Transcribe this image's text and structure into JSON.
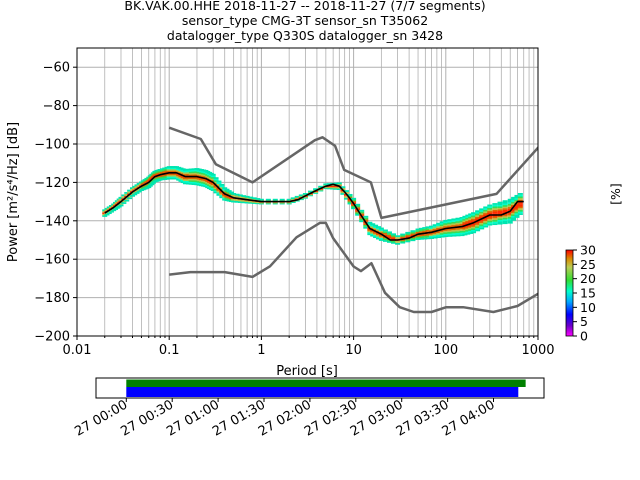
{
  "title": {
    "line1": "BK.VAK.00.HHE   2018-11-27 -- 2018-11-27  (7/7 segments)",
    "line2": "sensor_type CMG-3T sensor_sn T35062",
    "line3": "datalogger_type Q330S datalogger_sn 3428"
  },
  "chart_data": [
    {
      "type": "heatmap",
      "xlabel": "Period [s]",
      "ylabel": "Power [m²/s⁴/Hz] [dB]",
      "xscale": "log",
      "xlim": [
        0.01,
        1000
      ],
      "ylim": [
        -200,
        -50
      ],
      "xtick_labels": [
        "0.01",
        "0.1",
        "1",
        "10",
        "100",
        "1000"
      ],
      "xticks": [
        0.01,
        0.1,
        1,
        10,
        100,
        1000
      ],
      "yticks": [
        -60,
        -80,
        -100,
        -120,
        -140,
        -160,
        -180,
        -200
      ],
      "grid": true,
      "colorbar": {
        "label": "[%]",
        "min": 0,
        "max": 30,
        "ticks": [
          0,
          5,
          10,
          15,
          20,
          25,
          30
        ]
      },
      "series": [
        {
          "role": "high_noise_model",
          "color": "#666666",
          "x": [
            0.1,
            0.22,
            0.32,
            0.8,
            3.8,
            4.6,
            6.3,
            7.9,
            15.4,
            20,
            354.8,
            10000
          ],
          "y": [
            -91.5,
            -97.4,
            -110.5,
            -120,
            -98,
            -96.5,
            -101,
            -113.5,
            -120,
            -138.5,
            -126,
            -48.5
          ]
        },
        {
          "role": "low_noise_model",
          "color": "#666666",
          "x": [
            0.1,
            0.17,
            0.4,
            0.8,
            1.24,
            2.4,
            4.3,
            5,
            6,
            10,
            12,
            15.6,
            21.9,
            31.6,
            45,
            70,
            101,
            154,
            328,
            600,
            1000
          ],
          "y": [
            -168,
            -166.7,
            -166.7,
            -169.2,
            -163.7,
            -148.6,
            -141.1,
            -141.1,
            -149,
            -163.8,
            -166.2,
            -162.1,
            -177.5,
            -185,
            -187.5,
            -187.5,
            -185,
            -185,
            -187.5,
            -184.4,
            -178
          ]
        },
        {
          "role": "mode_ppsd",
          "color": "#000000",
          "x": [
            0.02,
            0.025,
            0.03,
            0.04,
            0.05,
            0.06,
            0.07,
            0.08,
            0.1,
            0.12,
            0.15,
            0.2,
            0.25,
            0.3,
            0.4,
            0.5,
            0.7,
            1,
            1.5,
            2,
            2.5,
            3,
            4,
            5,
            6,
            7,
            8,
            9,
            10,
            12,
            15,
            20,
            25,
            30,
            40,
            50,
            70,
            100,
            150,
            200,
            300,
            400,
            500,
            600,
            700
          ],
          "y": [
            -136,
            -133,
            -130,
            -125,
            -122,
            -120,
            -117,
            -116,
            -115,
            -115,
            -117,
            -117,
            -118,
            -120,
            -126,
            -128,
            -129,
            -130,
            -130,
            -130,
            -129,
            -127,
            -124,
            -122,
            -121,
            -122,
            -125,
            -128,
            -131,
            -137,
            -144,
            -147,
            -150,
            -150,
            -149,
            -147,
            -146,
            -144,
            -143,
            -141,
            -137,
            -137,
            -135,
            -130,
            -130
          ]
        }
      ],
      "spread": [
        {
          "x": 0.02,
          "y": -136,
          "d": 1.5
        },
        {
          "x": 0.025,
          "y": -133,
          "d": 1.5
        },
        {
          "x": 0.03,
          "y": -130,
          "d": 2
        },
        {
          "x": 0.04,
          "y": -125,
          "d": 2
        },
        {
          "x": 0.05,
          "y": -122,
          "d": 2
        },
        {
          "x": 0.06,
          "y": -120,
          "d": 2.5
        },
        {
          "x": 0.07,
          "y": -117,
          "d": 2.5
        },
        {
          "x": 0.08,
          "y": -116,
          "d": 2.5
        },
        {
          "x": 0.1,
          "y": -115,
          "d": 3
        },
        {
          "x": 0.12,
          "y": -115,
          "d": 3
        },
        {
          "x": 0.15,
          "y": -117,
          "d": 3.5
        },
        {
          "x": 0.2,
          "y": -117,
          "d": 4
        },
        {
          "x": 0.25,
          "y": -118,
          "d": 4
        },
        {
          "x": 0.3,
          "y": -120,
          "d": 4
        },
        {
          "x": 0.4,
          "y": -126,
          "d": 3
        },
        {
          "x": 0.5,
          "y": -128,
          "d": 2
        },
        {
          "x": 0.7,
          "y": -129,
          "d": 1.5
        },
        {
          "x": 1,
          "y": -130,
          "d": 1
        },
        {
          "x": 2,
          "y": -130,
          "d": 1
        },
        {
          "x": 3,
          "y": -127,
          "d": 1
        },
        {
          "x": 5,
          "y": -122,
          "d": 1
        },
        {
          "x": 7,
          "y": -122,
          "d": 1.5
        },
        {
          "x": 10,
          "y": -131,
          "d": 2.5
        },
        {
          "x": 15,
          "y": -144,
          "d": 3
        },
        {
          "x": 20,
          "y": -147,
          "d": 3
        },
        {
          "x": 30,
          "y": -150,
          "d": 2
        },
        {
          "x": 50,
          "y": -147,
          "d": 2.5
        },
        {
          "x": 70,
          "y": -146,
          "d": 3
        },
        {
          "x": 100,
          "y": -144,
          "d": 4
        },
        {
          "x": 150,
          "y": -143,
          "d": 4.5
        },
        {
          "x": 200,
          "y": -141,
          "d": 5
        },
        {
          "x": 300,
          "y": -137,
          "d": 5
        },
        {
          "x": 500,
          "y": -135,
          "d": 6
        },
        {
          "x": 700,
          "y": -130,
          "d": 5
        }
      ]
    },
    {
      "type": "timeline",
      "tick_labels": [
        "27 00:00",
        "27 00:30",
        "27 01:00",
        "27 01:30",
        "27 02:00",
        "27 02:30",
        "27 03:00",
        "27 03:30",
        "27 04:00"
      ],
      "xlim": [
        -0.33,
        4.55
      ],
      "bars": [
        {
          "color": "#008000",
          "start": 0,
          "end": 4.35
        },
        {
          "color": "#0000ff",
          "start": 0,
          "end": 4.27
        }
      ]
    }
  ]
}
